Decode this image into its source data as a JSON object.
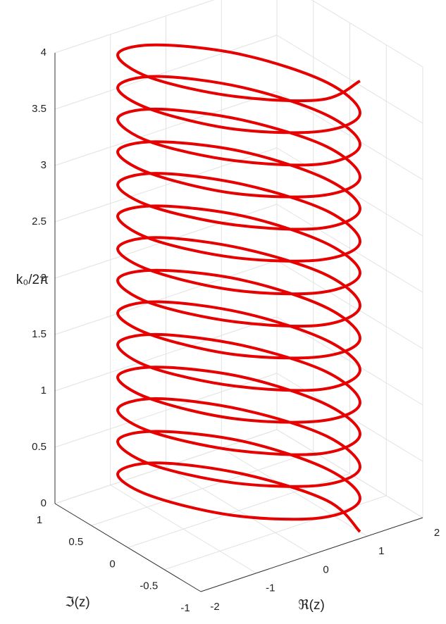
{
  "chart_data": {
    "type": "line3d",
    "xlabel": "ℜ(z)",
    "ylabel": "ℑ(z)",
    "zlabel": "k₀/2π",
    "color": "#e60000",
    "grid": true,
    "xlim": [
      -2,
      2
    ],
    "ylim": [
      -1,
      1
    ],
    "zlim": [
      0,
      4
    ],
    "xticks": [
      -2,
      -1,
      0,
      1,
      2
    ],
    "yticks": [
      -1,
      -0.5,
      0,
      0.5,
      1
    ],
    "zticks": [
      0,
      0.5,
      1,
      1.5,
      2,
      2.5,
      3,
      3.5,
      4
    ],
    "x": [
      1,
      1.13,
      0.6,
      -0.28,
      -1,
      -1.13,
      -0.6,
      0.28,
      1,
      1.13,
      0.6,
      -0.28,
      -1,
      -1.13,
      -0.6,
      0.28,
      1,
      1.13,
      0.6,
      -0.28,
      -1,
      -1.13,
      -0.6,
      0.28,
      1,
      1.13,
      0.6,
      -0.28,
      -1,
      -1.13,
      -0.6,
      0.28,
      1,
      1.13,
      0.6,
      -0.28,
      -1,
      -1.13,
      -0.6,
      0.28,
      1,
      1.13,
      0.6,
      -0.28,
      -1,
      -1.13,
      -0.6,
      0.28,
      1,
      1.13,
      0.6,
      -0.28,
      -1,
      -1.13,
      -0.6,
      0.28,
      1,
      1.13,
      0.6,
      -0.28,
      -1,
      -1.13,
      -0.6,
      0.28,
      1,
      1.13,
      0.6,
      -0.28,
      -1,
      -1.13,
      -0.6,
      0.28,
      1,
      1.13,
      0.6,
      -0.28,
      -1,
      -1.13,
      -0.6,
      0.28,
      1,
      1.13,
      0.6,
      -0.28,
      -1,
      -1.13,
      -0.6,
      0.28,
      1,
      1.13,
      0.6,
      -0.28,
      -1,
      -1.13,
      -0.6,
      0.28,
      1,
      1.13,
      0.6,
      -0.28,
      -1,
      -1.13,
      -0.6,
      0.28,
      1,
      1.13,
      0.6,
      -0.28,
      -1,
      -1.13,
      -0.6,
      0.28,
      1
    ],
    "y": [
      -0.9,
      -0.35,
      0.4,
      0.92,
      0.9,
      0.35,
      -0.4,
      -0.92,
      -0.9,
      -0.35,
      0.4,
      0.92,
      0.9,
      0.35,
      -0.4,
      -0.92,
      -0.9,
      -0.35,
      0.4,
      0.92,
      0.9,
      0.35,
      -0.4,
      -0.92,
      -0.9,
      -0.35,
      0.4,
      0.92,
      0.9,
      0.35,
      -0.4,
      -0.92,
      -0.9,
      -0.35,
      0.4,
      0.92,
      0.9,
      0.35,
      -0.4,
      -0.92,
      -0.9,
      -0.35,
      0.4,
      0.92,
      0.9,
      0.35,
      -0.4,
      -0.92,
      -0.9,
      -0.35,
      0.4,
      0.92,
      0.9,
      0.35,
      -0.4,
      -0.92,
      -0.9,
      -0.35,
      0.4,
      0.92,
      0.9,
      0.35,
      -0.4,
      -0.92,
      -0.9,
      -0.35,
      0.4,
      0.92,
      0.9,
      0.35,
      -0.4,
      -0.92,
      -0.9,
      -0.35,
      0.4,
      0.92,
      0.9,
      0.35,
      -0.4,
      -0.92,
      -0.9,
      -0.35,
      0.4,
      0.92,
      0.9,
      0.35,
      -0.4,
      -0.92,
      -0.9,
      -0.35,
      0.4,
      0.92,
      0.9,
      0.35,
      -0.4,
      -0.92,
      -0.9,
      -0.35,
      0.4,
      0.92,
      0.9,
      0.35,
      -0.4,
      -0.92,
      -0.9,
      -0.35,
      0.4,
      0.92,
      0.9,
      0.35,
      -0.4,
      -0.92,
      -0.9
    ],
    "z": [
      0,
      0.04,
      0.07,
      0.11,
      0.14,
      0.18,
      0.21,
      0.25,
      0.29,
      0.32,
      0.36,
      0.39,
      0.43,
      0.46,
      0.5,
      0.54,
      0.57,
      0.61,
      0.64,
      0.68,
      0.71,
      0.75,
      0.79,
      0.82,
      0.86,
      0.89,
      0.93,
      0.96,
      1,
      1.04,
      1.07,
      1.11,
      1.14,
      1.18,
      1.21,
      1.25,
      1.29,
      1.32,
      1.36,
      1.39,
      1.43,
      1.46,
      1.5,
      1.54,
      1.57,
      1.61,
      1.64,
      1.68,
      1.71,
      1.75,
      1.79,
      1.82,
      1.86,
      1.89,
      1.93,
      1.96,
      2,
      2.04,
      2.07,
      2.11,
      2.14,
      2.18,
      2.21,
      2.25,
      2.29,
      2.32,
      2.36,
      2.39,
      2.43,
      2.46,
      2.5,
      2.54,
      2.57,
      2.61,
      2.64,
      2.68,
      2.71,
      2.75,
      2.79,
      2.82,
      2.86,
      2.89,
      2.93,
      2.96,
      3,
      3.04,
      3.07,
      3.11,
      3.14,
      3.18,
      3.21,
      3.25,
      3.29,
      3.32,
      3.36,
      3.39,
      3.43,
      3.46,
      3.5,
      3.54,
      3.57,
      3.61,
      3.64,
      3.68,
      3.71,
      3.75,
      3.79,
      3.82,
      3.86,
      3.89,
      3.93,
      3.96,
      4
    ]
  }
}
